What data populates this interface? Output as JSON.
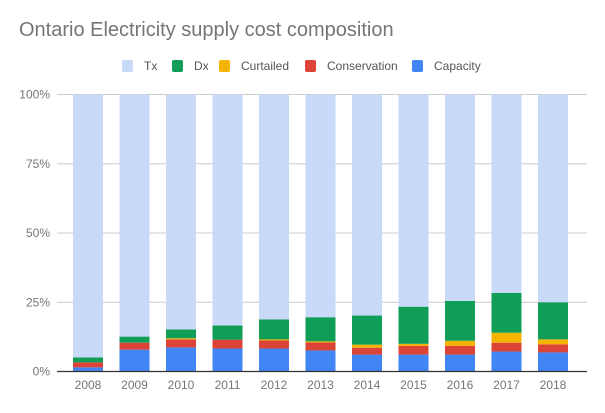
{
  "chart_data": {
    "type": "bar",
    "stacked": "percent",
    "title": "Ontario Electricity supply cost composition",
    "xlabel": "",
    "ylabel": "",
    "ylim": [
      0,
      100
    ],
    "y_ticks": [
      0,
      25,
      50,
      75,
      100
    ],
    "y_tick_labels": [
      "0%",
      "25%",
      "50%",
      "75%",
      "100%"
    ],
    "grid": true,
    "legend_position": "top",
    "categories": [
      "2008",
      "2009",
      "2010",
      "2011",
      "2012",
      "2013",
      "2014",
      "2015",
      "2016",
      "2017",
      "2018"
    ],
    "series": [
      {
        "name": "Capacity",
        "color": "#4285f4",
        "values": [
          1.5,
          7.9,
          8.7,
          8.3,
          8.3,
          7.6,
          6.1,
          6.1,
          6.1,
          7.2,
          6.9
        ]
      },
      {
        "name": "Conservation",
        "color": "#db4437",
        "values": [
          1.8,
          2.5,
          2.9,
          3.2,
          2.9,
          2.9,
          2.5,
          3.2,
          3.2,
          3.2,
          2.9
        ]
      },
      {
        "name": "Curtailed",
        "color": "#f4b400",
        "values": [
          0,
          0,
          0.4,
          0,
          0.4,
          0.4,
          1.1,
          0.7,
          1.8,
          3.6,
          1.8
        ]
      },
      {
        "name": "Dx",
        "color": "#0f9d58",
        "values": [
          1.8,
          2.2,
          3.2,
          5.1,
          7.2,
          8.7,
          10.5,
          13.4,
          14.4,
          14.4,
          13.4
        ]
      },
      {
        "name": "Tx",
        "color": "#c9daf8",
        "values": [
          94.9,
          87.4,
          84.8,
          83.4,
          81.2,
          80.4,
          79.8,
          76.6,
          74.5,
          71.6,
          75.0
        ]
      }
    ],
    "legend_order": [
      "Tx",
      "Dx",
      "Curtailed",
      "Conservation",
      "Capacity"
    ]
  }
}
